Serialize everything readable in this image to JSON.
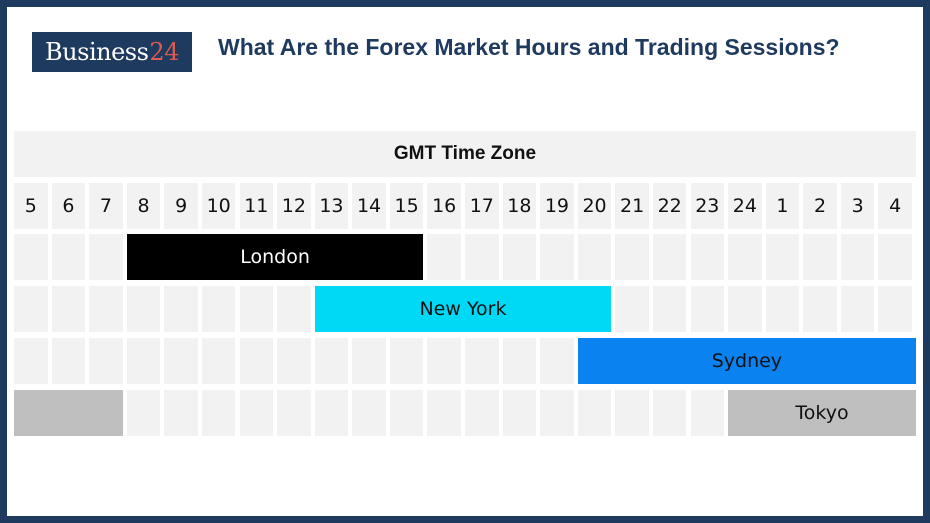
{
  "header": {
    "logo_text": "Business",
    "logo_number": "24",
    "title": "What Are the Forex Market Hours and Trading Sessions?"
  },
  "chart_data": {
    "type": "gantt",
    "title": "GMT Time Zone",
    "hours": [
      "5",
      "6",
      "7",
      "8",
      "9",
      "10",
      "11",
      "12",
      "13",
      "14",
      "15",
      "16",
      "17",
      "18",
      "19",
      "20",
      "21",
      "22",
      "23",
      "24",
      "1",
      "2",
      "3",
      "4"
    ],
    "sessions": [
      {
        "name": "London",
        "start": "8",
        "end": "16",
        "color": "#000000",
        "text_color": "#ffffff"
      },
      {
        "name": "New York",
        "start": "13",
        "end": "21",
        "color": "#00d9f5",
        "text_color": "#111111"
      },
      {
        "name": "Sydney",
        "start": "20",
        "end": "5",
        "color": "#0a82ef",
        "text_color": "#111111"
      },
      {
        "name": "Tokyo",
        "start": "24",
        "end": "8",
        "color": "#bfbfbf",
        "text_color": "#111111"
      }
    ]
  }
}
